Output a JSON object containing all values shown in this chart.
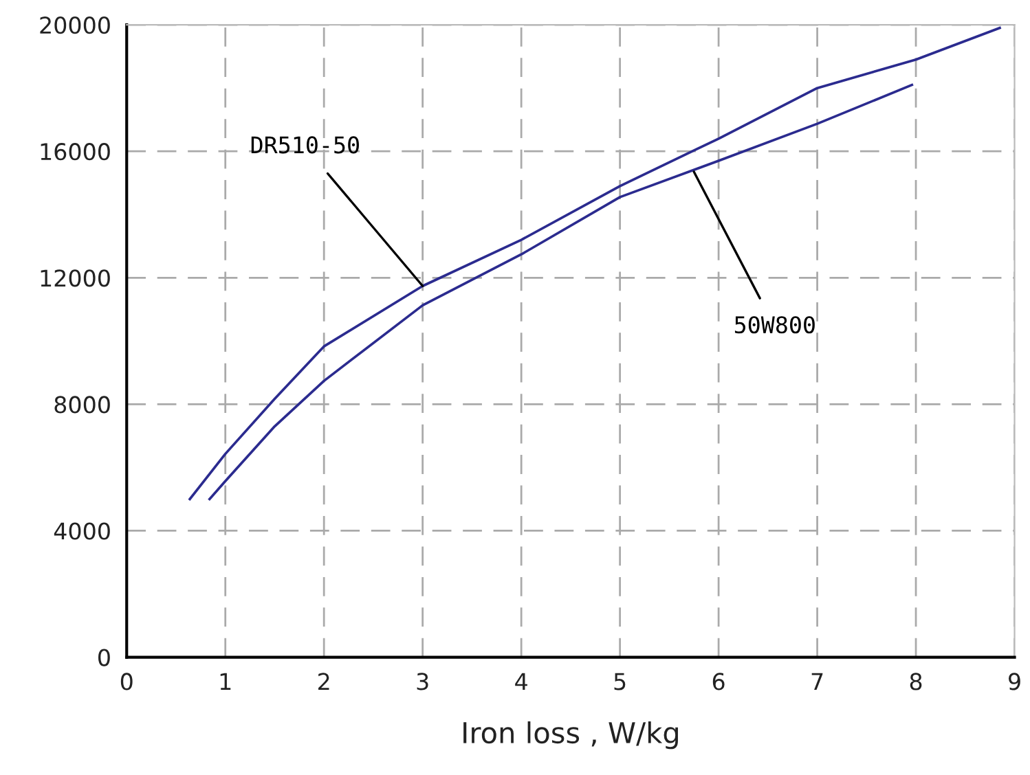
{
  "chart_data": {
    "type": "line",
    "xlabel": "Iron loss , W/kg",
    "series": [
      {
        "color": "#2b2b8f",
        "x": [
          0.64,
          1,
          1.5,
          2,
          3,
          4,
          5,
          6,
          7,
          8,
          8.85
        ],
        "values": [
          5000,
          6430,
          8170,
          9830,
          11740,
          13200,
          14900,
          16400,
          18000,
          18900,
          19900
        ]
      },
      {
        "color": "#2b2b8f",
        "x": [
          0.84,
          1,
          1.5,
          2,
          3,
          4,
          5,
          6,
          7,
          7.96
        ],
        "values": [
          5000,
          5570,
          7300,
          8740,
          11130,
          12740,
          14550,
          15700,
          16870,
          18100
        ]
      }
    ],
    "annotations": [
      {
        "text": "DR510-50",
        "x": 3,
        "y": 11740
      },
      {
        "text": "50W800",
        "x": 5.75,
        "y": 15350
      }
    ],
    "xlim": [
      0,
      9
    ],
    "xticks": [
      0,
      1,
      2,
      3,
      4,
      5,
      6,
      7,
      8,
      9
    ],
    "ylim": [
      0,
      20000
    ],
    "yticks": [
      0,
      4000,
      8000,
      12000,
      16000,
      20000
    ],
    "grid": true,
    "line_style": "solid",
    "marker": "none"
  }
}
